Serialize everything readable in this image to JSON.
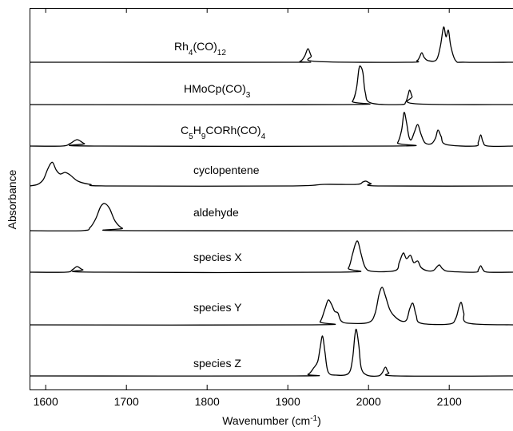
{
  "chart_data": {
    "type": "line",
    "x_label": "Wavenumber (cm-1)",
    "y_label": "Absorbance",
    "xlim": [
      1580,
      2180
    ],
    "xticks": [
      1600,
      1700,
      1800,
      1900,
      2000,
      2100
    ],
    "series": [
      {
        "name": "Rh4(CO)12",
        "color": "#000000",
        "x": [
          1580,
          1900,
          1915,
          1921,
          1925,
          1929,
          1935,
          2050,
          2060,
          2063,
          2066,
          2069,
          2074,
          2084,
          2089,
          2093,
          2096,
          2099,
          2102,
          2108,
          2120,
          2180
        ],
        "values": [
          0,
          0,
          0.01,
          0.08,
          0.17,
          0.08,
          0.01,
          0,
          0.02,
          0.06,
          0.12,
          0.06,
          0.02,
          0.03,
          0.2,
          0.44,
          0.32,
          0.4,
          0.2,
          0.02,
          0,
          0
        ]
      },
      {
        "name": "HMoCp(CO)3",
        "color": "#000000",
        "x": [
          1580,
          1970,
          1980,
          1985,
          1988,
          1990,
          1993,
          1996,
          2003,
          2040,
          2046,
          2049,
          2051,
          2054,
          2058,
          2180
        ],
        "values": [
          0,
          0,
          0.04,
          0.2,
          0.44,
          0.48,
          0.4,
          0.15,
          0.02,
          0,
          0.03,
          0.12,
          0.18,
          0.1,
          0.01,
          0
        ]
      },
      {
        "name": "C5H9CORh(CO)4",
        "color": "#000000",
        "x": [
          1580,
          1620,
          1630,
          1639,
          1648,
          1660,
          2030,
          2036,
          2041,
          2044,
          2047,
          2050,
          2053,
          2057,
          2061,
          2065,
          2070,
          2078,
          2083,
          2086,
          2090,
          2096,
          2132,
          2136,
          2139,
          2142,
          2148,
          2180
        ],
        "values": [
          0,
          0,
          0.03,
          0.08,
          0.03,
          0,
          0,
          0.04,
          0.2,
          0.42,
          0.3,
          0.12,
          0.08,
          0.18,
          0.27,
          0.15,
          0.04,
          0.03,
          0.1,
          0.2,
          0.12,
          0.02,
          0,
          0.05,
          0.14,
          0.05,
          0,
          0
        ]
      },
      {
        "name": "cyclopentene",
        "color": "#000000",
        "x": [
          1580,
          1590,
          1597,
          1602,
          1606,
          1609,
          1613,
          1618,
          1624,
          1630,
          1640,
          1655,
          1680,
          1900,
          1945,
          1985,
          1993,
          1997,
          2003,
          2015,
          2180
        ],
        "values": [
          0,
          0.02,
          0.08,
          0.2,
          0.28,
          0.29,
          0.2,
          0.15,
          0.17,
          0.14,
          0.06,
          0.02,
          0,
          0,
          0.02,
          0.02,
          0.05,
          0.06,
          0.03,
          0,
          0
        ]
      },
      {
        "name": "aldehyde",
        "color": "#000000",
        "x": [
          1580,
          1645,
          1655,
          1662,
          1668,
          1673,
          1679,
          1686,
          1695,
          1710,
          2180
        ],
        "values": [
          0,
          0,
          0.04,
          0.15,
          0.3,
          0.34,
          0.28,
          0.12,
          0.03,
          0,
          0
        ]
      },
      {
        "name": "species X",
        "color": "#000000",
        "x": [
          1580,
          1625,
          1633,
          1639,
          1646,
          1660,
          1965,
          1975,
          1980,
          1984,
          1987,
          1991,
          1996,
          2005,
          2033,
          2038,
          2043,
          2047,
          2052,
          2056,
          2061,
          2065,
          2072,
          2080,
          2085,
          2088,
          2092,
          2100,
          2132,
          2136,
          2139,
          2142,
          2148,
          2180
        ],
        "values": [
          0,
          0,
          0.03,
          0.07,
          0.03,
          0,
          0,
          0.05,
          0.22,
          0.36,
          0.38,
          0.22,
          0.06,
          0.01,
          0.02,
          0.12,
          0.24,
          0.17,
          0.21,
          0.12,
          0.14,
          0.06,
          0.02,
          0.02,
          0.07,
          0.09,
          0.04,
          0.01,
          0,
          0.03,
          0.08,
          0.03,
          0,
          0
        ]
      },
      {
        "name": "species Y",
        "color": "#000000",
        "x": [
          1580,
          1930,
          1940,
          1946,
          1950,
          1954,
          1958,
          1962,
          1966,
          1975,
          2000,
          2008,
          2013,
          2017,
          2021,
          2026,
          2031,
          2040,
          2047,
          2051,
          2055,
          2059,
          2065,
          2100,
          2108,
          2112,
          2115,
          2118,
          2124,
          2180
        ],
        "values": [
          0,
          0,
          0.04,
          0.2,
          0.31,
          0.26,
          0.17,
          0.15,
          0.05,
          0.02,
          0.03,
          0.14,
          0.38,
          0.47,
          0.36,
          0.2,
          0.12,
          0.05,
          0.06,
          0.2,
          0.27,
          0.12,
          0.02,
          0.01,
          0.08,
          0.22,
          0.28,
          0.15,
          0.02,
          0
        ]
      },
      {
        "name": "species Z",
        "color": "#000000",
        "x": [
          1580,
          1910,
          1925,
          1932,
          1937,
          1940,
          1943,
          1946,
          1950,
          1960,
          1975,
          1980,
          1983,
          1985,
          1988,
          1991,
          1998,
          2012,
          2017,
          2021,
          2025,
          2035,
          2180
        ],
        "values": [
          0,
          0,
          0.02,
          0.1,
          0.18,
          0.35,
          0.5,
          0.3,
          0.05,
          0.01,
          0.03,
          0.2,
          0.5,
          0.58,
          0.38,
          0.1,
          0.01,
          0,
          0.04,
          0.11,
          0.04,
          0,
          0
        ]
      }
    ]
  }
}
